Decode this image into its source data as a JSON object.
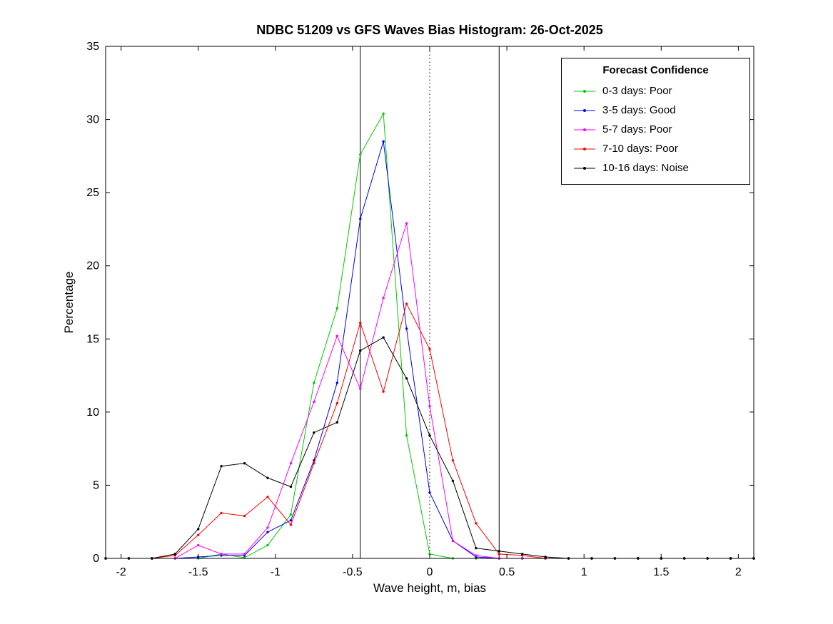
{
  "title": "NDBC 51209 vs GFS Waves Bias Histogram: 26-Oct-2025",
  "legend": {
    "title": "Forecast Confidence",
    "items": [
      {
        "label": "0-3 days: Poor",
        "color": "#00cc00"
      },
      {
        "label": "3-5 days: Good",
        "color": "#0000ff"
      },
      {
        "label": "5-7 days: Poor",
        "color": "#ff00ff"
      },
      {
        "label": "7-10 days: Poor",
        "color": "#ff0000"
      },
      {
        "label": "10-16 days: Noise",
        "color": "#000000"
      }
    ]
  },
  "chart_data": {
    "type": "line",
    "title": "NDBC 51209 vs GFS Waves Bias Histogram: 26-Oct-2025",
    "xlabel": "Wave height, m, bias",
    "ylabel": "Percentage",
    "xlim": [
      -2.1,
      2.1
    ],
    "ylim": [
      0,
      35
    ],
    "grid": false,
    "legend_position": "top-right",
    "x_ticks": [
      -2,
      -1.5,
      -1,
      -0.5,
      0,
      0.5,
      1,
      1.5,
      2
    ],
    "x_tick_labels": [
      "-2",
      "-1.5",
      "-1",
      "-0.5",
      "0",
      "0.5",
      "1",
      "1.5",
      "2"
    ],
    "y_ticks": [
      0,
      5,
      10,
      15,
      20,
      25,
      30,
      35
    ],
    "y_tick_labels": [
      "0",
      "5",
      "10",
      "15",
      "20",
      "25",
      "30",
      "35"
    ],
    "x": [
      -2.1,
      -1.95,
      -1.8,
      -1.65,
      -1.5,
      -1.35,
      -1.2,
      -1.05,
      -0.9,
      -0.75,
      -0.6,
      -0.45,
      -0.3,
      -0.15,
      0,
      0.15,
      0.3,
      0.45,
      0.6,
      0.75,
      0.9,
      1.05,
      1.2,
      1.35,
      1.5,
      1.65,
      1.8,
      1.95,
      2.1
    ],
    "series": [
      {
        "name": "0-3 days: Poor",
        "confidence": "Poor",
        "color": "#00cc00",
        "values": [
          0,
          0,
          0,
          0,
          0,
          0.3,
          0.05,
          0.9,
          3.0,
          12.0,
          17.1,
          27.6,
          30.4,
          8.4,
          0.3,
          0,
          0,
          0,
          0,
          0,
          0,
          0,
          0,
          0,
          0,
          0,
          0,
          0,
          0
        ]
      },
      {
        "name": "3-5 days: Good",
        "confidence": "Good",
        "color": "#0000ff",
        "values": [
          0,
          0,
          0,
          0,
          0.1,
          0.2,
          0.2,
          1.8,
          2.6,
          6.7,
          12.0,
          23.2,
          28.5,
          15.7,
          4.5,
          1.2,
          0.1,
          0,
          0,
          0,
          0,
          0,
          0,
          0,
          0,
          0,
          0,
          0,
          0
        ]
      },
      {
        "name": "5-7 days: Poor",
        "confidence": "Poor",
        "color": "#ff00ff",
        "values": [
          0,
          0,
          0,
          0,
          0.9,
          0.3,
          0.3,
          2.1,
          6.5,
          10.7,
          15.2,
          11.6,
          17.8,
          22.9,
          10.4,
          1.2,
          0.2,
          0,
          0,
          0,
          0,
          0,
          0,
          0,
          0,
          0,
          0,
          0,
          0
        ]
      },
      {
        "name": "7-10 days: Poor",
        "confidence": "Poor",
        "color": "#ff0000",
        "values": [
          0,
          0,
          0,
          0.2,
          1.6,
          3.1,
          2.9,
          4.2,
          2.3,
          6.5,
          10.6,
          16.1,
          11.4,
          17.4,
          14.3,
          6.7,
          2.4,
          0.3,
          0.2,
          0,
          0,
          0,
          0,
          0,
          0,
          0,
          0,
          0,
          0
        ]
      },
      {
        "name": "10-16 days: Noise",
        "confidence": "Noise",
        "color": "#000000",
        "values": [
          0,
          0,
          0,
          0.3,
          2.0,
          6.3,
          6.5,
          5.5,
          4.9,
          8.6,
          9.3,
          14.2,
          15.1,
          12.3,
          8.4,
          5.3,
          0.7,
          0.5,
          0.3,
          0.1,
          0,
          0,
          0,
          0,
          0,
          0,
          0,
          0,
          0
        ]
      }
    ],
    "reference_lines": [
      {
        "x": -0.45,
        "style": "solid"
      },
      {
        "x": 0,
        "style": "dotted"
      },
      {
        "x": 0.45,
        "style": "solid"
      }
    ]
  }
}
